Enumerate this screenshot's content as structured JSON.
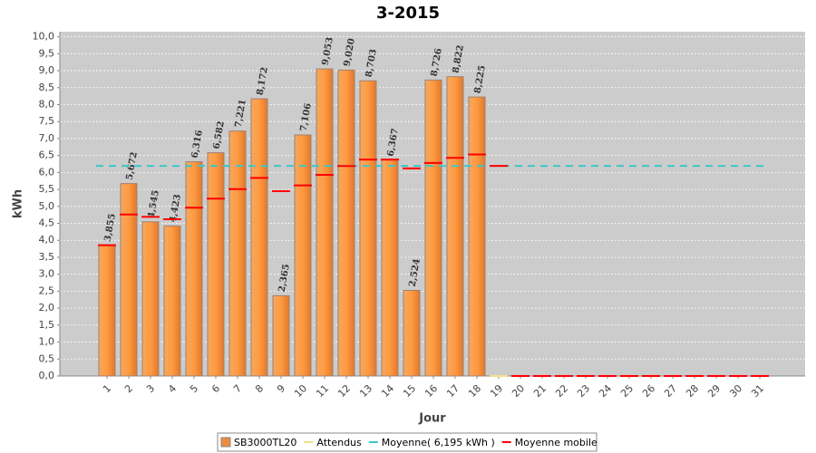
{
  "chart_data": {
    "type": "bar",
    "title": "3-2015",
    "y_label": "kWh",
    "x_label": "Jour",
    "categories": [
      "1",
      "2",
      "3",
      "4",
      "5",
      "6",
      "7",
      "8",
      "9",
      "10",
      "11",
      "12",
      "13",
      "14",
      "15",
      "16",
      "17",
      "18",
      "19",
      "20",
      "21",
      "22",
      "23",
      "24",
      "25",
      "26",
      "27",
      "28",
      "29",
      "30",
      "31"
    ],
    "series": [
      {
        "name": "SB3000TL20",
        "type": "bar",
        "color": "#f08a3c",
        "values": [
          3.855,
          5.672,
          4.545,
          4.423,
          6.316,
          6.582,
          7.221,
          8.172,
          2.365,
          7.106,
          9.053,
          9.02,
          8.703,
          6.367,
          2.524,
          8.726,
          8.822,
          8.225,
          0,
          0,
          0,
          0,
          0,
          0,
          0,
          0,
          0,
          0,
          0,
          0,
          0
        ],
        "value_labels": [
          "3,855",
          "5,672",
          "4,545",
          "4,423",
          "6,316",
          "6,582",
          "7,221",
          "8,172",
          "2,365",
          "7,106",
          "9,053",
          "9,020",
          "8,703",
          "6,367",
          "2,524",
          "8,726",
          "8,822",
          "8,225",
          null,
          null,
          null,
          null,
          null,
          null,
          null,
          null,
          null,
          null,
          null,
          null,
          null
        ]
      },
      {
        "name": "Attendus",
        "type": "dash",
        "color": "#f5e08a",
        "values": [
          null,
          null,
          null,
          null,
          null,
          null,
          null,
          null,
          null,
          null,
          null,
          null,
          null,
          null,
          null,
          null,
          null,
          null,
          0,
          null,
          null,
          null,
          null,
          null,
          null,
          null,
          null,
          null,
          null,
          null,
          null
        ]
      },
      {
        "name": "Moyenne( 6,195 kWh )",
        "type": "hline",
        "color": "#3cc8c8",
        "value": 6.195
      },
      {
        "name": "Moyenne mobile",
        "type": "dash",
        "color": "#ff0000",
        "values": [
          3.855,
          4.76,
          4.69,
          4.62,
          4.96,
          5.23,
          5.51,
          5.84,
          5.45,
          5.62,
          5.93,
          6.19,
          6.38,
          6.38,
          6.12,
          6.28,
          6.43,
          6.53,
          6.195,
          0,
          0,
          0,
          0,
          0,
          0,
          0,
          0,
          0,
          0,
          0,
          0
        ]
      }
    ],
    "ylim": [
      0,
      10.15
    ],
    "yticks": [
      {
        "value": 0,
        "label": "0,0"
      },
      {
        "value": 0.5,
        "label": "0,5"
      },
      {
        "value": 1,
        "label": "1,0"
      },
      {
        "value": 1.5,
        "label": "1,5"
      },
      {
        "value": 2,
        "label": "2,0"
      },
      {
        "value": 2.5,
        "label": "2,5"
      },
      {
        "value": 3,
        "label": "3,0"
      },
      {
        "value": 3.5,
        "label": "3,5"
      },
      {
        "value": 4,
        "label": "4,0"
      },
      {
        "value": 4.5,
        "label": "4,5"
      },
      {
        "value": 5,
        "label": "5,0"
      },
      {
        "value": 5.5,
        "label": "5,5"
      },
      {
        "value": 6,
        "label": "6,0"
      },
      {
        "value": 6.5,
        "label": "6,5"
      },
      {
        "value": 7,
        "label": "7,0"
      },
      {
        "value": 7.5,
        "label": "7,5"
      },
      {
        "value": 8,
        "label": "8,0"
      },
      {
        "value": 8.5,
        "label": "8,5"
      },
      {
        "value": 9,
        "label": "9,0"
      },
      {
        "value": 9.5,
        "label": "9,5"
      },
      {
        "value": 10,
        "label": "10,0"
      }
    ],
    "grid": true,
    "legend": "bottom"
  }
}
